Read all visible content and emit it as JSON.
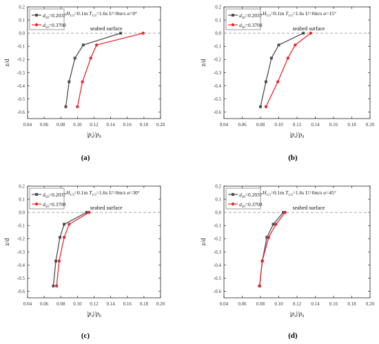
{
  "figure": {
    "panel_tags": [
      "(a)",
      "(b)",
      "(c)",
      "(d)"
    ]
  },
  "colors": {
    "series1": "#4d4d4d",
    "series2": "#e8272e",
    "surface": "#888888",
    "axis": "#222222"
  },
  "chart_data": [
    {
      "type": "line",
      "panel": "(a)",
      "title": "",
      "annotation": "seabed surface",
      "condition_text": {
        "H": "H",
        "H_sub": "1/3",
        "H_val": "=0.1m",
        "T": "T",
        "T_sub": "1/3",
        "T_val": "=1.6s",
        "U": "U",
        "U_val": "=0m/s",
        "a": "α",
        "a_val": "=0°"
      },
      "xlabel": {
        "pre": "|",
        "p": "p",
        "sub": "s",
        "post": "|/",
        "p0": "p",
        "sub0": "0"
      },
      "ylabel": "z/d",
      "xlim": [
        0.04,
        0.2
      ],
      "ylim": [
        -0.65,
        0.2
      ],
      "xticks": [
        "0.04",
        "0.06",
        "0.08",
        "0.10",
        "0.12",
        "0.14",
        "0.16",
        "0.18",
        "0.20"
      ],
      "yticks": [
        "0.2",
        "0.1",
        "0.0",
        "-0.1",
        "-0.2",
        "-0.3",
        "-0.4",
        "-0.5",
        "-0.6"
      ],
      "legend_position": "top-left",
      "series": [
        {
          "name_pre": "d",
          "name_sub": "50",
          "name_post": "=0.2037",
          "color": "#4d4d4d",
          "marker": "square",
          "x": [
            0.152,
            0.107,
            0.097,
            0.09,
            0.086
          ],
          "y": [
            0.0,
            -0.09,
            -0.19,
            -0.37,
            -0.56
          ]
        },
        {
          "name_pre": "d",
          "name_sub": "50",
          "name_post": "=0.3708",
          "color": "#e8272e",
          "marker": "circle",
          "x": [
            0.179,
            0.123,
            0.116,
            0.106,
            0.1
          ],
          "y": [
            0.0,
            -0.09,
            -0.19,
            -0.37,
            -0.56
          ]
        }
      ]
    },
    {
      "type": "line",
      "panel": "(b)",
      "title": "",
      "annotation": "seabed surface",
      "condition_text": {
        "H": "H",
        "H_sub": "1/3",
        "H_val": "=0.1m",
        "T": "T",
        "T_sub": "1/3",
        "T_val": "=1.6s",
        "U": "U",
        "U_val": "=0m/s",
        "a": "α",
        "a_val": "=15°"
      },
      "xlabel": {
        "pre": "|",
        "p": "p",
        "sub": "s",
        "post": "|/",
        "p0": "p",
        "sub0": "0"
      },
      "ylabel": "z/d",
      "xlim": [
        0.04,
        0.2
      ],
      "ylim": [
        -0.65,
        0.2
      ],
      "xticks": [
        "0.04",
        "0.06",
        "0.08",
        "0.10",
        "0.12",
        "0.14",
        "0.16",
        "0.18",
        "0.20"
      ],
      "yticks": [
        "0.2",
        "0.1",
        "0.0",
        "-0.1",
        "-0.2",
        "-0.3",
        "-0.4",
        "-0.5",
        "-0.6"
      ],
      "legend_position": "top-left",
      "series": [
        {
          "name_pre": "d",
          "name_sub": "50",
          "name_post": "=0.2037",
          "color": "#4d4d4d",
          "marker": "square",
          "x": [
            0.127,
            0.1,
            0.092,
            0.086,
            0.08
          ],
          "y": [
            0.0,
            -0.09,
            -0.19,
            -0.37,
            -0.56
          ]
        },
        {
          "name_pre": "d",
          "name_sub": "50",
          "name_post": "=0.3708",
          "color": "#e8272e",
          "marker": "circle",
          "x": [
            0.135,
            0.118,
            0.11,
            0.099,
            0.086
          ],
          "y": [
            0.0,
            -0.09,
            -0.19,
            -0.37,
            -0.56
          ]
        }
      ]
    },
    {
      "type": "line",
      "panel": "(c)",
      "title": "",
      "annotation": "seabed surface",
      "condition_text": {
        "H": "H",
        "H_sub": "1/3",
        "H_val": "=0.1m",
        "T": "T",
        "T_sub": "1/3",
        "T_val": "=1.6s",
        "U": "U",
        "U_val": "=0m/s",
        "a": "α",
        "a_val": "=30°"
      },
      "xlabel": {
        "pre": "|",
        "p": "p",
        "sub": "s",
        "post": "|/",
        "p0": "p",
        "sub0": "0"
      },
      "ylabel": "z/d",
      "xlim": [
        0.04,
        0.2
      ],
      "ylim": [
        -0.65,
        0.2
      ],
      "xticks": [
        "0.04",
        "0.06",
        "0.08",
        "0.10",
        "0.12",
        "0.14",
        "0.16",
        "0.18",
        "0.20"
      ],
      "yticks": [
        "0.2",
        "0.1",
        "0.0",
        "-0.1",
        "-0.2",
        "-0.3",
        "-0.4",
        "-0.5",
        "-0.6"
      ],
      "legend_position": "top-left",
      "series": [
        {
          "name_pre": "d",
          "name_sub": "50",
          "name_post": "=0.2037",
          "color": "#4d4d4d",
          "marker": "square",
          "x": [
            0.111,
            0.084,
            0.079,
            0.074,
            0.071
          ],
          "y": [
            0.0,
            -0.09,
            -0.19,
            -0.37,
            -0.56
          ]
        },
        {
          "name_pre": "d",
          "name_sub": "50",
          "name_post": "=0.3708",
          "color": "#e8272e",
          "marker": "circle",
          "x": [
            0.114,
            0.09,
            0.084,
            0.078,
            0.075
          ],
          "y": [
            0.0,
            -0.09,
            -0.19,
            -0.37,
            -0.56
          ]
        }
      ]
    },
    {
      "type": "line",
      "panel": "(d)",
      "title": "",
      "annotation": "seabed surface",
      "condition_text": {
        "H": "H",
        "H_sub": "1/3",
        "H_val": "=0.1m",
        "T": "T",
        "T_sub": "1/3",
        "T_val": "=1.6s",
        "U": "U",
        "U_val": "=0m/s",
        "a": "α",
        "a_val": "=45°"
      },
      "xlabel": {
        "pre": "|",
        "p": "p",
        "sub": "s",
        "post": "|/",
        "p0": "p",
        "sub0": "0"
      },
      "ylabel": "z/d",
      "xlim": [
        0.04,
        0.2
      ],
      "ylim": [
        -0.65,
        0.2
      ],
      "xticks": [
        "0.04",
        "0.06",
        "0.08",
        "0.10",
        "0.12",
        "0.14",
        "0.16",
        "0.18",
        "0.20"
      ],
      "yticks": [
        "0.2",
        "0.1",
        "0.0",
        "-0.1",
        "-0.2",
        "-0.3",
        "-0.4",
        "-0.5",
        "-0.6"
      ],
      "legend_position": "top-left",
      "series": [
        {
          "name_pre": "d",
          "name_sub": "50",
          "name_post": "=0.2037",
          "color": "#4d4d4d",
          "marker": "square",
          "x": [
            0.105,
            0.094,
            0.087,
            0.082,
            0.079
          ],
          "y": [
            0.0,
            -0.09,
            -0.19,
            -0.37,
            -0.56
          ]
        },
        {
          "name_pre": "d",
          "name_sub": "50",
          "name_post": "=0.3708",
          "color": "#e8272e",
          "marker": "circle",
          "x": [
            0.107,
            0.097,
            0.089,
            0.082,
            0.079
          ],
          "y": [
            0.0,
            -0.09,
            -0.19,
            -0.37,
            -0.56
          ]
        }
      ]
    }
  ]
}
